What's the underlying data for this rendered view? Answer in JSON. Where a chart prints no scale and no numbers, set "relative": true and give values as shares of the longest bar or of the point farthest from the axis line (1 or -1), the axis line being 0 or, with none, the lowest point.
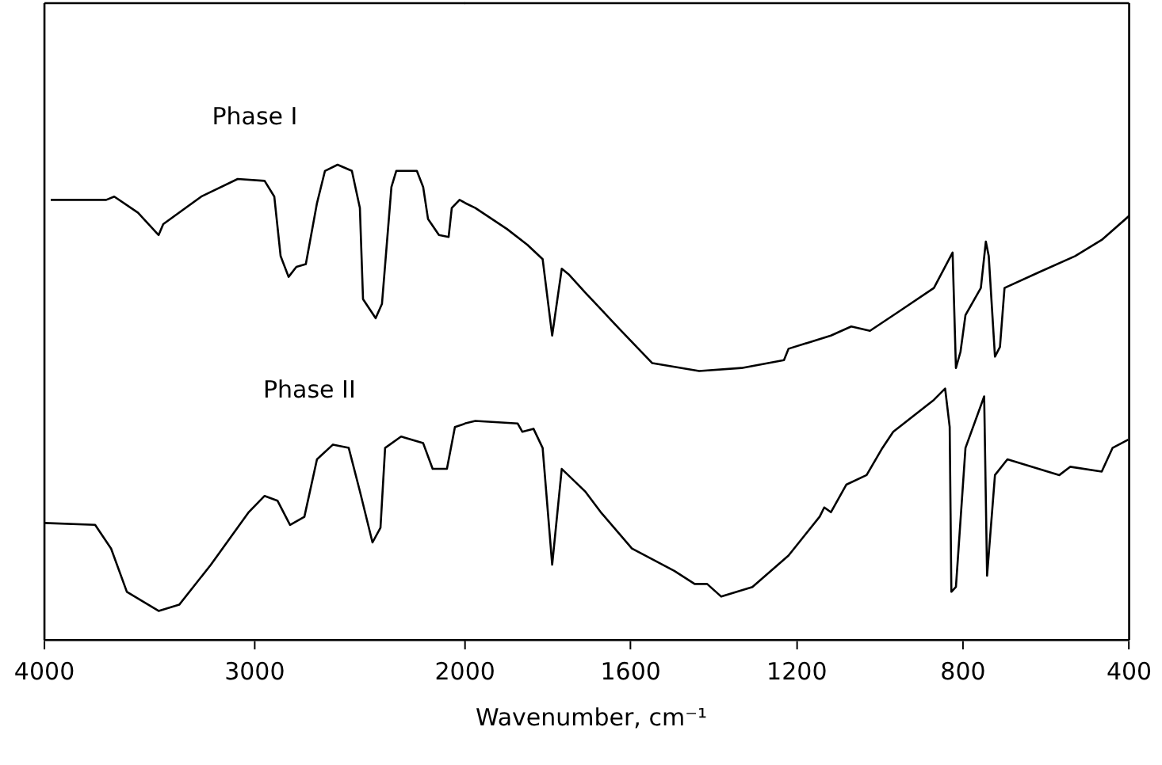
{
  "chart_data": [
    {
      "type": "line",
      "relative": true,
      "xlim": [
        4000,
        2000
      ],
      "xticks": [
        4000,
        3000,
        2000
      ],
      "grid": false,
      "legend": false,
      "marker": "none",
      "line_style": "solid",
      "series": [
        {
          "name": "Phase I",
          "color": "#000000",
          "x": [
            3970,
            3706,
            3668,
            3555,
            3457,
            3435,
            3254,
            3081,
            2953,
            2907,
            2877,
            2839,
            2802,
            2757,
            2704,
            2666,
            2606,
            2538,
            2500,
            2485,
            2455,
            2425,
            2395,
            2350,
            2327,
            2229,
            2199,
            2176,
            2124,
            2078,
            2063,
            2026,
            2000
          ],
          "values": [
            0.926,
            0.926,
            0.933,
            0.899,
            0.852,
            0.875,
            0.933,
            0.97,
            0.966,
            0.933,
            0.808,
            0.764,
            0.785,
            0.791,
            0.919,
            0.987,
            1,
            0.987,
            0.909,
            0.717,
            0.697,
            0.677,
            0.707,
            0.953,
            0.987,
            0.987,
            0.953,
            0.886,
            0.852,
            0.848,
            0.909,
            0.926,
            0.92
          ]
        },
        {
          "name": "Phase II",
          "color": "#000000",
          "x": [
            4000,
            3759,
            3683,
            3608,
            3457,
            3359,
            3209,
            3028,
            2953,
            2892,
            2832,
            2764,
            2704,
            2628,
            2553,
            2500,
            2440,
            2402,
            2380,
            2304,
            2199,
            2154,
            2086,
            2048,
            2000
          ],
          "values": [
            0.246,
            0.242,
            0.192,
            0.101,
            0.061,
            0.074,
            0.158,
            0.269,
            0.303,
            0.293,
            0.242,
            0.259,
            0.38,
            0.411,
            0.404,
            0.313,
            0.205,
            0.236,
            0.404,
            0.428,
            0.414,
            0.36,
            0.36,
            0.448,
            0.455
          ]
        }
      ]
    },
    {
      "type": "line",
      "relative": true,
      "xlabel": "Wavenumber, cm⁻¹",
      "xlim": [
        2000,
        400
      ],
      "xticks": [
        1600,
        1200,
        800,
        400
      ],
      "grid": false,
      "legend": false,
      "marker": "none",
      "line_style": "solid",
      "series": [
        {
          "color": "#000000",
          "x": [
            2000,
            1974,
            1898,
            1849,
            1812,
            1789,
            1766,
            1748,
            1710,
            1683,
            1623,
            1548,
            1435,
            1333,
            1231,
            1220,
            1118,
            1069,
            1024,
            956,
            870,
            825,
            817,
            806,
            794,
            757,
            745,
            738,
            723,
            711,
            700,
            617,
            530,
            466,
            400
          ],
          "values": [
            1,
            0.988,
            0.94,
            0.904,
            0.871,
            0.696,
            0.849,
            0.835,
            0.795,
            0.768,
            0.707,
            0.633,
            0.615,
            0.622,
            0.64,
            0.666,
            0.696,
            0.717,
            0.707,
            0.75,
            0.805,
            0.886,
            0.622,
            0.659,
            0.743,
            0.805,
            0.911,
            0.878,
            0.648,
            0.67,
            0.805,
            0.841,
            0.878,
            0.915,
            0.97
          ]
        },
        {
          "color": "#000000",
          "x": [
            2000,
            1974,
            1872,
            1861,
            1834,
            1812,
            1789,
            1766,
            1710,
            1672,
            1597,
            1495,
            1446,
            1416,
            1382,
            1307,
            1220,
            1145,
            1134,
            1118,
            1081,
            1032,
            994,
            968,
            870,
            843,
            832,
            828,
            817,
            794,
            749,
            742,
            723,
            693,
            568,
            542,
            466,
            440,
            402
          ],
          "values": [
            0.495,
            0.501,
            0.495,
            0.476,
            0.483,
            0.439,
            0.172,
            0.391,
            0.34,
            0.292,
            0.209,
            0.158,
            0.128,
            0.128,
            0.099,
            0.121,
            0.193,
            0.282,
            0.303,
            0.292,
            0.355,
            0.377,
            0.439,
            0.476,
            0.549,
            0.575,
            0.487,
            0.11,
            0.121,
            0.439,
            0.557,
            0.147,
            0.377,
            0.413,
            0.377,
            0.396,
            0.385,
            0.439,
            0.458
          ]
        }
      ]
    }
  ]
}
